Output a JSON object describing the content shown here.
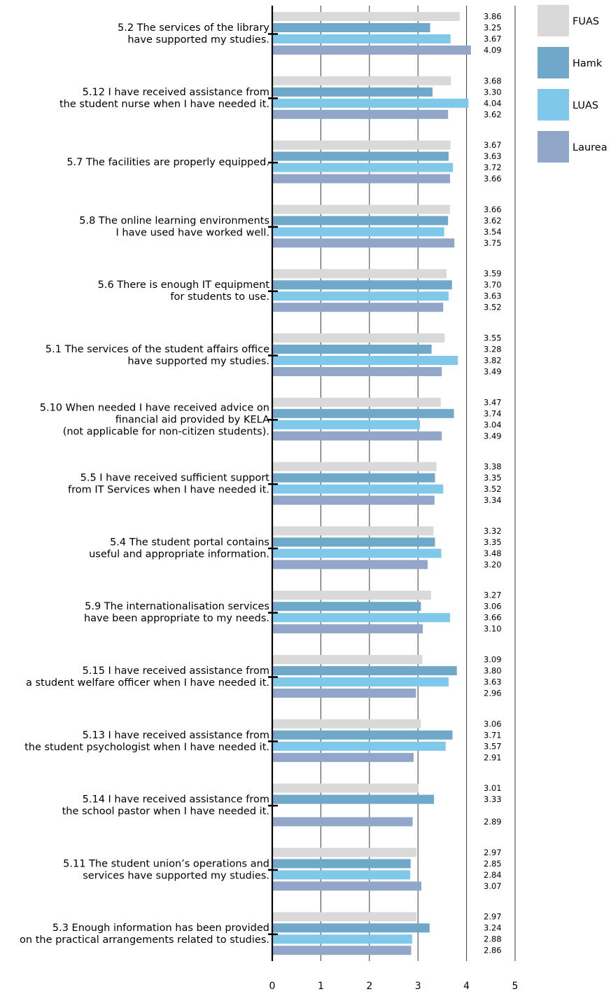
{
  "chart_data": {
    "type": "bar",
    "orientation": "horizontal",
    "title": "",
    "xlabel": "",
    "ylabel": "",
    "xlim": [
      0,
      5
    ],
    "x_ticks": [
      "0",
      "1",
      "2",
      "3",
      "4",
      "5"
    ],
    "grid": true,
    "legend_position": "right",
    "series": [
      {
        "name": "FUAS",
        "color": "#d9d9d9"
      },
      {
        "name": "Hamk",
        "color": "#6fa8c8"
      },
      {
        "name": "LUAS",
        "color": "#7fc8ea"
      },
      {
        "name": "Laurea",
        "color": "#92a6c9"
      }
    ],
    "categories": [
      {
        "lines": [
          "5.2 The services of the library",
          "have supported my studies."
        ],
        "values": [
          3.86,
          3.25,
          3.67,
          4.09
        ],
        "labels": [
          "3.86",
          "3.25",
          "3.67",
          "4.09"
        ]
      },
      {
        "lines": [
          "5.12 I have received assistance from",
          "the student nurse when I have needed it."
        ],
        "values": [
          3.68,
          3.3,
          4.04,
          3.62
        ],
        "labels": [
          "3.68",
          "3.30",
          "4.04",
          "3.62"
        ]
      },
      {
        "lines": [
          "5.7 The facilities are properly equipped."
        ],
        "values": [
          3.67,
          3.63,
          3.72,
          3.66
        ],
        "labels": [
          "3.67",
          "3.63",
          "3.72",
          "3.66"
        ]
      },
      {
        "lines": [
          "5.8 The online learning environments",
          "I have used have worked well."
        ],
        "values": [
          3.66,
          3.62,
          3.54,
          3.75
        ],
        "labels": [
          "3.66",
          "3.62",
          "3.54",
          "3.75"
        ]
      },
      {
        "lines": [
          "5.6 There is enough IT equipment",
          "for students to use."
        ],
        "values": [
          3.59,
          3.7,
          3.63,
          3.52
        ],
        "labels": [
          "3.59",
          "3.70",
          "3.63",
          "3.52"
        ]
      },
      {
        "lines": [
          "5.1 The services of the student affairs office",
          "have supported my studies."
        ],
        "values": [
          3.55,
          3.28,
          3.82,
          3.49
        ],
        "labels": [
          "3.55",
          "3.28",
          "3.82",
          "3.49"
        ]
      },
      {
        "lines": [
          "5.10 When needed I have received advice on",
          "financial aid provided by KELA",
          "(not applicable for non-citizen students)."
        ],
        "values": [
          3.47,
          3.74,
          3.04,
          3.49
        ],
        "labels": [
          "3.47",
          "3.74",
          "3.04",
          "3.49"
        ]
      },
      {
        "lines": [
          "5.5 I have received sufficient support",
          "from IT Services when I have needed it."
        ],
        "values": [
          3.38,
          3.35,
          3.52,
          3.34
        ],
        "labels": [
          "3.38",
          "3.35",
          "3.52",
          "3.34"
        ]
      },
      {
        "lines": [
          "5.4 The student portal contains",
          "useful and appropriate information."
        ],
        "values": [
          3.32,
          3.35,
          3.48,
          3.2
        ],
        "labels": [
          "3.32",
          "3.35",
          "3.48",
          "3.20"
        ]
      },
      {
        "lines": [
          "5.9 The internationalisation services",
          "have been appropriate to my needs."
        ],
        "values": [
          3.27,
          3.06,
          3.66,
          3.1
        ],
        "labels": [
          "3.27",
          "3.06",
          "3.66",
          "3.10"
        ]
      },
      {
        "lines": [
          "5.15 I have received assistance from",
          "a student welfare officer when I have needed it."
        ],
        "values": [
          3.09,
          3.8,
          3.63,
          2.96
        ],
        "labels": [
          "3.09",
          "3.80",
          "3.63",
          "2.96"
        ]
      },
      {
        "lines": [
          "5.13 I have received assistance from",
          "the student psychologist when I have needed it."
        ],
        "values": [
          3.06,
          3.71,
          3.57,
          2.91
        ],
        "labels": [
          "3.06",
          "3.71",
          "3.57",
          "2.91"
        ]
      },
      {
        "lines": [
          "5.14 I have received assistance from",
          "the school pastor when I have needed it."
        ],
        "values": [
          3.01,
          3.33,
          null,
          2.89
        ],
        "labels": [
          "3.01",
          "3.33",
          "",
          "2.89"
        ]
      },
      {
        "lines": [
          "5.11 The student union’s operations and",
          "services have supported my studies."
        ],
        "values": [
          2.97,
          2.85,
          2.84,
          3.07
        ],
        "labels": [
          "2.97",
          "2.85",
          "2.84",
          "3.07"
        ]
      },
      {
        "lines": [
          "5.3 Enough information has been provided",
          "on the practical arrangements related to studies."
        ],
        "values": [
          2.97,
          3.24,
          2.88,
          2.86
        ],
        "labels": [
          "2.97",
          "3.24",
          "2.88",
          "2.86"
        ]
      }
    ]
  }
}
